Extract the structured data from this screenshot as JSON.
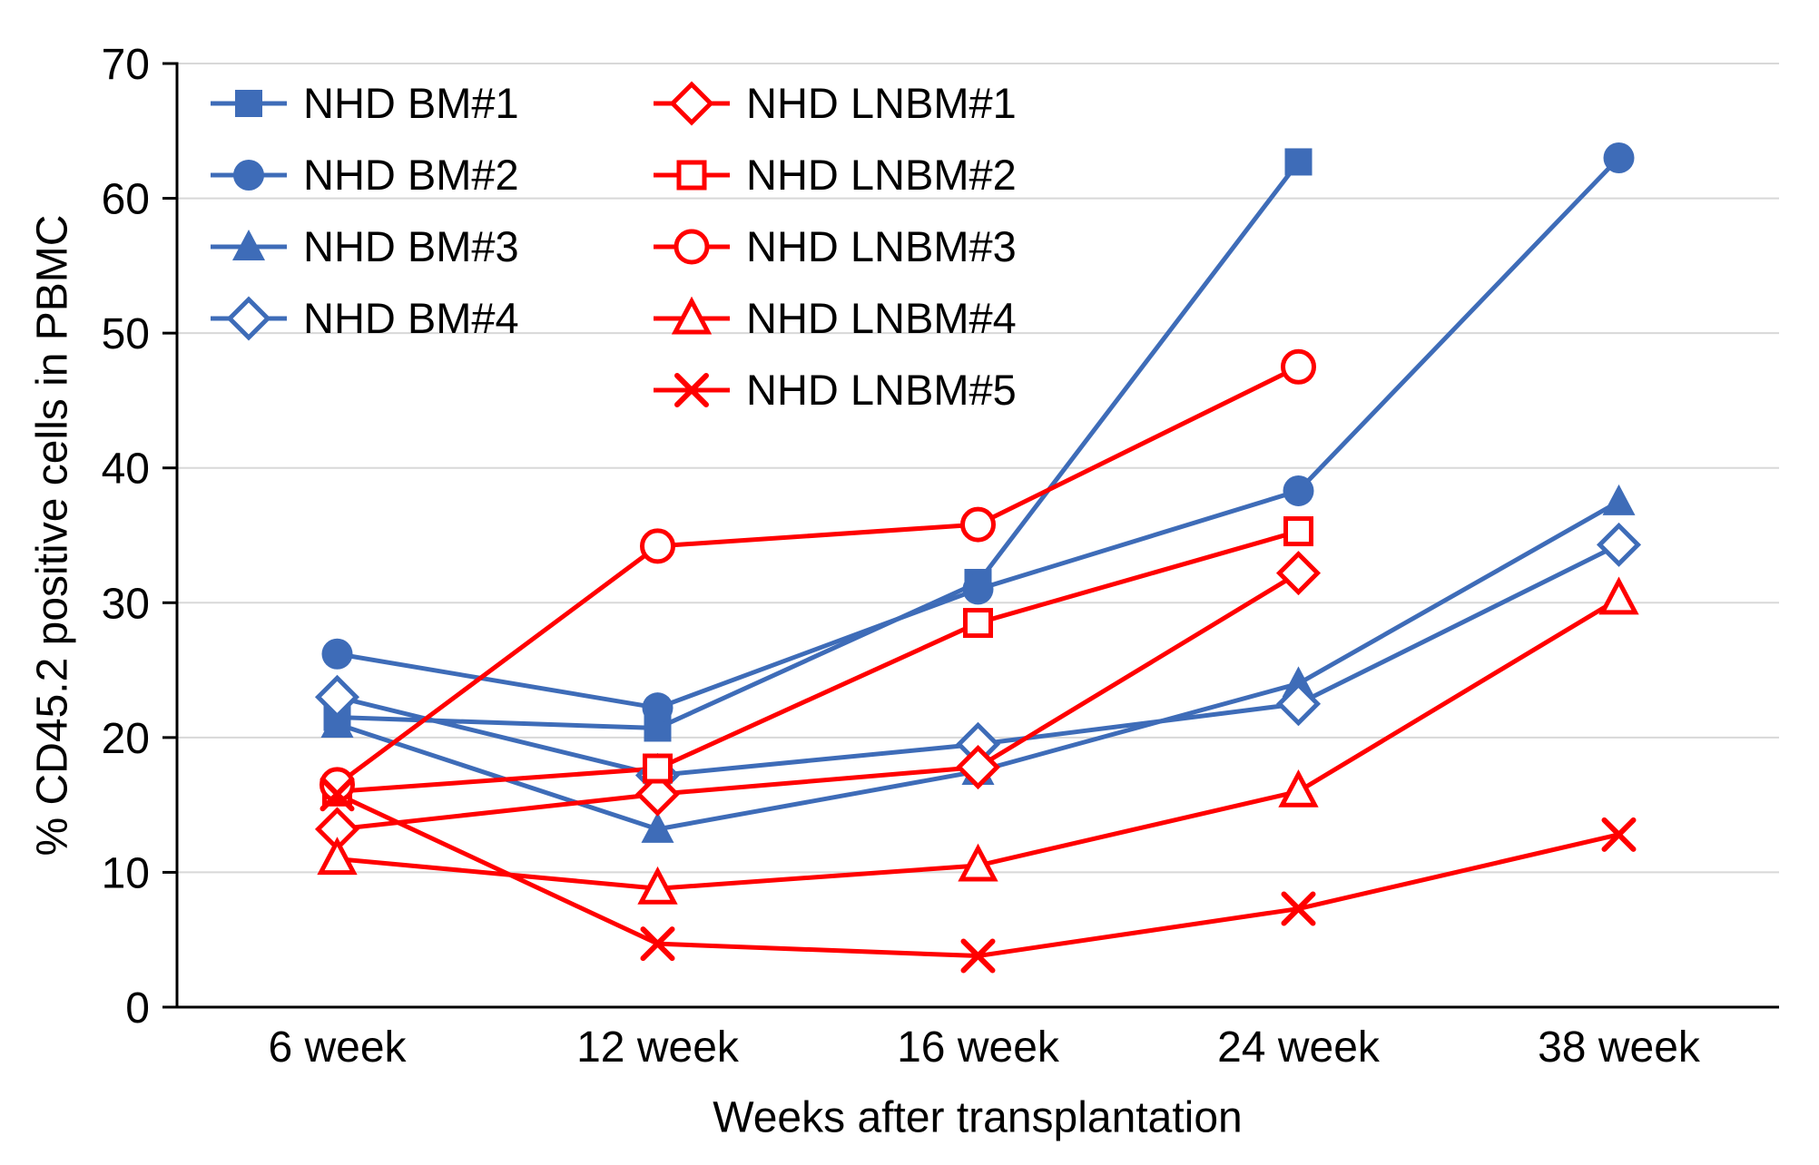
{
  "chart_data": {
    "type": "line",
    "title": "",
    "xlabel": "Weeks after transplantation",
    "ylabel": "% CD45.2 positive cells in PBMC",
    "categories": [
      "6 week",
      "12 week",
      "16 week",
      "24 week",
      "38 week"
    ],
    "ylim": [
      0,
      70
    ],
    "ytick_step": 10,
    "grid": "horizontal",
    "legend_position": "top-left inside plot, two columns",
    "colors": {
      "bm_blue": "#3E6CB8",
      "lnbm_red": "#FF0000",
      "grid": "#D8D8D8",
      "axis": "#000000",
      "background": "#FFFFFF"
    },
    "series": [
      {
        "name": "NHD BM#1",
        "color": "#3E6CB8",
        "marker": "square-filled",
        "legend_column": 1,
        "values": [
          21.5,
          20.7,
          31.5,
          62.7,
          null
        ]
      },
      {
        "name": "NHD BM#2",
        "color": "#3E6CB8",
        "marker": "circle-filled",
        "legend_column": 1,
        "values": [
          26.2,
          22.2,
          31.0,
          38.3,
          63.0
        ]
      },
      {
        "name": "NHD BM#3",
        "color": "#3E6CB8",
        "marker": "triangle-filled",
        "legend_column": 1,
        "values": [
          21.0,
          13.2,
          17.5,
          24.0,
          37.5
        ]
      },
      {
        "name": "NHD BM#4",
        "color": "#3E6CB8",
        "marker": "diamond-open",
        "legend_column": 1,
        "values": [
          23.0,
          17.2,
          19.5,
          22.5,
          34.3
        ]
      },
      {
        "name": "NHD LNBM#1",
        "color": "#FF0000",
        "marker": "diamond-open",
        "legend_column": 2,
        "values": [
          13.2,
          15.8,
          17.8,
          32.2,
          null
        ]
      },
      {
        "name": "NHD LNBM#2",
        "color": "#FF0000",
        "marker": "square-open",
        "legend_column": 2,
        "values": [
          16.0,
          17.7,
          28.5,
          35.3,
          null
        ]
      },
      {
        "name": "NHD LNBM#3",
        "color": "#FF0000",
        "marker": "circle-open",
        "legend_column": 2,
        "values": [
          16.5,
          34.2,
          35.8,
          47.5,
          null
        ]
      },
      {
        "name": "NHD LNBM#4",
        "color": "#FF0000",
        "marker": "triangle-open",
        "legend_column": 2,
        "values": [
          11.0,
          8.8,
          10.5,
          16.0,
          30.3
        ]
      },
      {
        "name": "NHD LNBM#5",
        "color": "#FF0000",
        "marker": "x",
        "legend_column": 2,
        "values": [
          15.8,
          4.7,
          3.8,
          7.3,
          12.8
        ]
      }
    ]
  }
}
